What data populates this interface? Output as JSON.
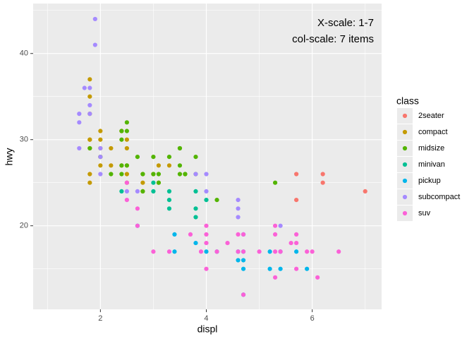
{
  "chart_data": {
    "type": "scatter",
    "annotations": [
      "X-scale: 1-7",
      "col-scale: 7 items"
    ],
    "xlabel": "displ",
    "ylabel": "hwy",
    "legend_title": "class",
    "legend": "right",
    "grid": true,
    "xlim": [
      0.73,
      7.31
    ],
    "ylim": [
      10.3,
      45.8
    ],
    "xticks": [
      2,
      4,
      6
    ],
    "yticks": [
      20,
      30,
      40
    ],
    "x_minor_breaks": [
      1,
      3,
      5,
      7
    ],
    "y_minor_breaks": [
      15,
      25,
      35,
      45
    ],
    "series": [
      {
        "name": "2seater",
        "color": "#F8766D",
        "x": [
          5.7,
          5.7,
          6.2,
          6.2,
          7.0
        ],
        "y": [
          26,
          23,
          26,
          25,
          24
        ]
      },
      {
        "name": "compact",
        "color": "#C49A00",
        "x": [
          1.8,
          1.8,
          2.0,
          2.0,
          2.8,
          3.1,
          1.8,
          1.8,
          2.0,
          2.0,
          2.8,
          3.1,
          2.0,
          2.5,
          2.8,
          1.8,
          1.8,
          1.8,
          2.2,
          2.4,
          3.0,
          3.3,
          2.2,
          2.5,
          2.5,
          2.5,
          1.8,
          2.4,
          2.4,
          2.5
        ],
        "y": [
          29,
          30,
          31,
          30,
          26,
          27,
          26,
          25,
          28,
          27,
          25,
          25,
          29,
          29,
          24,
          35,
          37,
          33,
          27,
          31,
          26,
          27,
          29,
          26,
          27,
          25,
          30,
          27,
          31,
          30
        ]
      },
      {
        "name": "midsize",
        "color": "#53B400",
        "x": [
          2.4,
          3.1,
          3.5,
          3.6,
          3.8,
          3.8,
          5.3,
          2.4,
          2.5,
          2.7,
          2.2,
          2.4,
          3.0,
          3.5,
          2.5,
          2.5,
          3.5,
          3.5,
          3.0,
          1.8,
          2.0,
          2.8,
          3.6,
          2.8,
          3.1,
          4.2,
          2.4,
          3.3
        ],
        "y": [
          27,
          26,
          29,
          26,
          28,
          26,
          25,
          30,
          27,
          28,
          26,
          31,
          28,
          29,
          31,
          32,
          27,
          26,
          26,
          29,
          28,
          26,
          26,
          24,
          25,
          23,
          26,
          28
        ]
      },
      {
        "name": "minivan",
        "color": "#00C094",
        "x": [
          2.4,
          3.0,
          3.3,
          3.3,
          3.3,
          3.8,
          3.8,
          4.0,
          3.8,
          3.0
        ],
        "y": [
          24,
          24,
          22,
          24,
          23,
          24,
          21,
          23,
          22,
          25
        ]
      },
      {
        "name": "pickup",
        "color": "#00B6EB",
        "x": [
          2.7,
          3.4,
          3.4,
          3.8,
          4.0,
          4.2,
          4.6,
          4.6,
          4.7,
          4.7,
          5.2,
          5.2,
          5.4,
          5.7,
          5.9,
          4.7,
          4.7,
          5.4,
          4.7
        ],
        "y": [
          20,
          17,
          19,
          18,
          17,
          17,
          16,
          17,
          16,
          17,
          15,
          17,
          15,
          17,
          15,
          12,
          15,
          17,
          19
        ]
      },
      {
        "name": "subcompact",
        "color": "#A58AFF",
        "x": [
          1.6,
          1.6,
          1.6,
          1.7,
          1.8,
          1.8,
          2.0,
          1.9,
          1.9,
          2.0,
          3.8,
          4.0,
          4.6,
          4.6,
          5.4,
          2.0,
          2.7,
          1.8,
          2.5,
          4.0,
          4.6,
          5.4
        ],
        "y": [
          33,
          32,
          29,
          36,
          36,
          34,
          29,
          44,
          41,
          26,
          26,
          26,
          23,
          22,
          20,
          28,
          24,
          33,
          24,
          24,
          21,
          17
        ]
      },
      {
        "name": "suv",
        "color": "#FB61D7",
        "x": [
          3.0,
          3.3,
          3.7,
          3.9,
          4.0,
          4.0,
          4.0,
          4.2,
          4.6,
          4.7,
          4.7,
          4.7,
          5.0,
          5.3,
          5.3,
          5.3,
          5.4,
          5.6,
          5.7,
          5.7,
          5.9,
          6.1,
          6.5,
          2.5,
          2.5,
          2.7,
          2.7,
          4.4,
          4.6,
          5.7,
          6.0,
          4.0,
          5.3
        ],
        "y": [
          17,
          17,
          19,
          17,
          20,
          15,
          19,
          17,
          19,
          17,
          19,
          12,
          17,
          20,
          19,
          14,
          17,
          18,
          19,
          15,
          17,
          14,
          17,
          23,
          25,
          22,
          20,
          18,
          17,
          18,
          17,
          18,
          17
        ]
      }
    ]
  }
}
